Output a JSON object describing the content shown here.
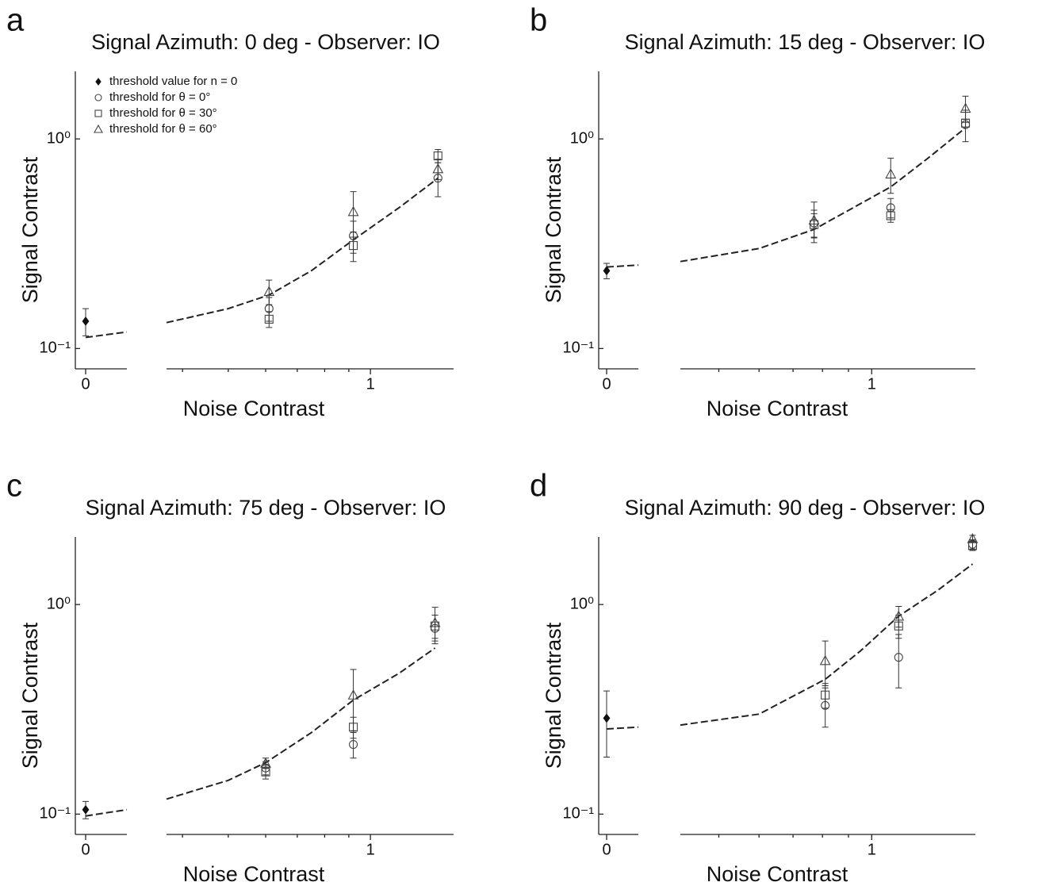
{
  "chart_data": [
    {
      "type": "scatter",
      "panel": "a",
      "title": "Signal Azimuth: 0 deg - Observer: IO",
      "xlabel": "Noise Contrast",
      "ylabel": "Signal Contrast",
      "y_log": true,
      "x_log": true,
      "legend": true,
      "xlim_zero": [
        -0.025,
        0.1
      ],
      "xticks_zero": [
        0
      ],
      "xlim": [
        0.37,
        1.5
      ],
      "xticks": [
        1
      ],
      "xminorticks": [
        0.4,
        0.5,
        0.6,
        0.7,
        0.8,
        0.9
      ],
      "ylim": [
        0.08,
        2.1
      ],
      "yticks": [
        {
          "value": 0.1,
          "label": "10⁻¹"
        },
        {
          "value": 1,
          "label": "10⁰"
        }
      ],
      "series": [
        {
          "name": "threshold value for n = 0",
          "marker": "diamond",
          "xaxis": "zero",
          "color": "#111",
          "x": [
            0
          ],
          "values": [
            0.135
          ],
          "errors": [
            0.02
          ]
        },
        {
          "name": "threshold for θ = 0°",
          "marker": "circle",
          "color": "#444",
          "x": [
            0.61,
            0.92,
            1.39
          ],
          "values": [
            0.155,
            0.345,
            0.65
          ],
          "errors": [
            0.02,
            0.06,
            0.12
          ]
        },
        {
          "name": "threshold for θ = 30°",
          "marker": "square",
          "color": "#444",
          "x": [
            0.61,
            0.92,
            1.39
          ],
          "values": [
            0.138,
            0.31,
            0.83
          ],
          "errors": [
            0.012,
            0.05,
            0.06
          ]
        },
        {
          "name": "threshold for θ = 60°",
          "marker": "triangle",
          "color": "#444",
          "x": [
            0.61,
            0.92,
            1.39
          ],
          "values": [
            0.187,
            0.45,
            0.72
          ],
          "errors": [
            0.025,
            0.11,
            0.08
          ]
        }
      ],
      "model_zero": {
        "x": [
          0,
          0.1
        ],
        "values": [
          0.113,
          0.12
        ]
      },
      "model": {
        "x": [
          0.37,
          0.5,
          0.61,
          0.75,
          0.92,
          1.15,
          1.39
        ],
        "values": [
          0.133,
          0.155,
          0.18,
          0.235,
          0.33,
          0.47,
          0.65
        ]
      }
    },
    {
      "type": "scatter",
      "panel": "b",
      "title": "Signal Azimuth: 15 deg - Observer: IO",
      "xlabel": "Noise Contrast",
      "ylabel": "Signal Contrast",
      "y_log": true,
      "x_log": true,
      "legend": false,
      "xlim_zero": [
        -0.025,
        0.1
      ],
      "xticks_zero": [
        0
      ],
      "xlim": [
        0.42,
        1.6
      ],
      "xticks": [
        1
      ],
      "xminorticks": [
        0.5,
        0.6,
        0.7,
        0.8,
        0.9
      ],
      "ylim": [
        0.08,
        2.1
      ],
      "yticks": [
        {
          "value": 0.1,
          "label": "10⁻¹"
        },
        {
          "value": 1,
          "label": "10⁰"
        }
      ],
      "series": [
        {
          "marker": "diamond",
          "xaxis": "zero",
          "color": "#111",
          "x": [
            0
          ],
          "values": [
            0.235
          ],
          "errors": [
            0.02
          ]
        },
        {
          "marker": "circle",
          "color": "#444",
          "x": [
            0.77,
            1.09,
            1.53
          ],
          "values": [
            0.397,
            0.47,
            1.17
          ],
          "errors": [
            0.06,
            0.05,
            0.2
          ]
        },
        {
          "marker": "square",
          "color": "#444",
          "x": [
            0.77,
            1.09,
            1.53
          ],
          "values": [
            0.39,
            0.43,
            1.19
          ],
          "errors": [
            0.05,
            0.03,
            0.05
          ]
        },
        {
          "marker": "triangle",
          "color": "#444",
          "x": [
            0.77,
            1.09,
            1.53
          ],
          "values": [
            0.41,
            0.68,
            1.4
          ],
          "errors": [
            0.09,
            0.13,
            0.2
          ]
        }
      ],
      "model_zero": {
        "x": [
          0,
          0.1
        ],
        "values": [
          0.245,
          0.25
        ]
      },
      "model": {
        "x": [
          0.42,
          0.6,
          0.77,
          0.92,
          1.09,
          1.3,
          1.53
        ],
        "values": [
          0.26,
          0.3,
          0.37,
          0.47,
          0.59,
          0.82,
          1.13
        ]
      }
    },
    {
      "type": "scatter",
      "panel": "c",
      "title": "Signal Azimuth: 75 deg - Observer: IO",
      "xlabel": "Noise Contrast",
      "ylabel": "Signal Contrast",
      "y_log": true,
      "x_log": true,
      "legend": false,
      "xlim_zero": [
        -0.025,
        0.1
      ],
      "xticks_zero": [
        0
      ],
      "xlim": [
        0.37,
        1.5
      ],
      "xticks": [
        1
      ],
      "xminorticks": [
        0.4,
        0.5,
        0.6,
        0.7,
        0.8,
        0.9
      ],
      "ylim": [
        0.08,
        2.1
      ],
      "yticks": [
        {
          "value": 0.1,
          "label": "10⁻¹"
        },
        {
          "value": 1,
          "label": "10⁰"
        }
      ],
      "series": [
        {
          "marker": "diamond",
          "xaxis": "zero",
          "color": "#111",
          "x": [
            0
          ],
          "values": [
            0.105
          ],
          "errors": [
            0.01
          ]
        },
        {
          "marker": "circle",
          "color": "#444",
          "x": [
            0.6,
            0.92,
            1.37
          ],
          "values": [
            0.166,
            0.215,
            0.77
          ],
          "errors": [
            0.012,
            0.03,
            0.12
          ]
        },
        {
          "marker": "square",
          "color": "#444",
          "x": [
            0.6,
            0.92,
            1.37
          ],
          "values": [
            0.159,
            0.26,
            0.79
          ],
          "errors": [
            0.012,
            0.03,
            0.1
          ]
        },
        {
          "marker": "triangle",
          "color": "#444",
          "x": [
            0.6,
            0.92,
            1.37
          ],
          "values": [
            0.175,
            0.37,
            0.82
          ],
          "errors": [
            0.01,
            0.12,
            0.15
          ]
        }
      ],
      "model_zero": {
        "x": [
          0,
          0.1
        ],
        "values": [
          0.098,
          0.105
        ]
      },
      "model": {
        "x": [
          0.37,
          0.5,
          0.6,
          0.75,
          0.92,
          1.15,
          1.37
        ],
        "values": [
          0.118,
          0.145,
          0.176,
          0.245,
          0.35,
          0.47,
          0.62
        ]
      }
    },
    {
      "type": "scatter",
      "panel": "d",
      "title": "Signal Azimuth: 90 deg - Observer: IO",
      "xlabel": "Noise Contrast",
      "ylabel": "Signal Contrast",
      "y_log": true,
      "x_log": true,
      "legend": false,
      "xlim_zero": [
        -0.025,
        0.1
      ],
      "xticks_zero": [
        0
      ],
      "xlim": [
        0.42,
        1.6
      ],
      "xticks": [
        1
      ],
      "xminorticks": [
        0.5,
        0.6,
        0.7,
        0.8,
        0.9
      ],
      "ylim": [
        0.08,
        2.1
      ],
      "yticks": [
        {
          "value": 0.1,
          "label": "10⁻¹"
        },
        {
          "value": 1,
          "label": "10⁰"
        }
      ],
      "series": [
        {
          "marker": "diamond",
          "xaxis": "zero",
          "color": "#111",
          "x": [
            0
          ],
          "values": [
            0.287
          ],
          "errors": [
            0.1
          ]
        },
        {
          "marker": "circle",
          "color": "#444",
          "x": [
            0.81,
            1.13,
            1.58
          ],
          "values": [
            0.33,
            0.56,
            1.94
          ],
          "errors": [
            0.07,
            0.16,
            0.1
          ]
        },
        {
          "marker": "square",
          "color": "#444",
          "x": [
            0.81,
            1.13,
            1.58
          ],
          "values": [
            0.37,
            0.79,
            1.91
          ],
          "errors": [
            0.05,
            0.1,
            0.1
          ]
        },
        {
          "marker": "triangle",
          "color": "#444",
          "x": [
            0.81,
            1.13,
            1.58
          ],
          "values": [
            0.54,
            0.88,
            2.06
          ],
          "errors": [
            0.13,
            0.1,
            0.08
          ]
        }
      ],
      "model_zero": {
        "x": [
          0,
          0.1
        ],
        "values": [
          0.255,
          0.26
        ]
      },
      "model": {
        "x": [
          0.42,
          0.6,
          0.81,
          0.95,
          1.13,
          1.35,
          1.58
        ],
        "values": [
          0.266,
          0.3,
          0.44,
          0.6,
          0.88,
          1.17,
          1.56
        ]
      }
    }
  ]
}
